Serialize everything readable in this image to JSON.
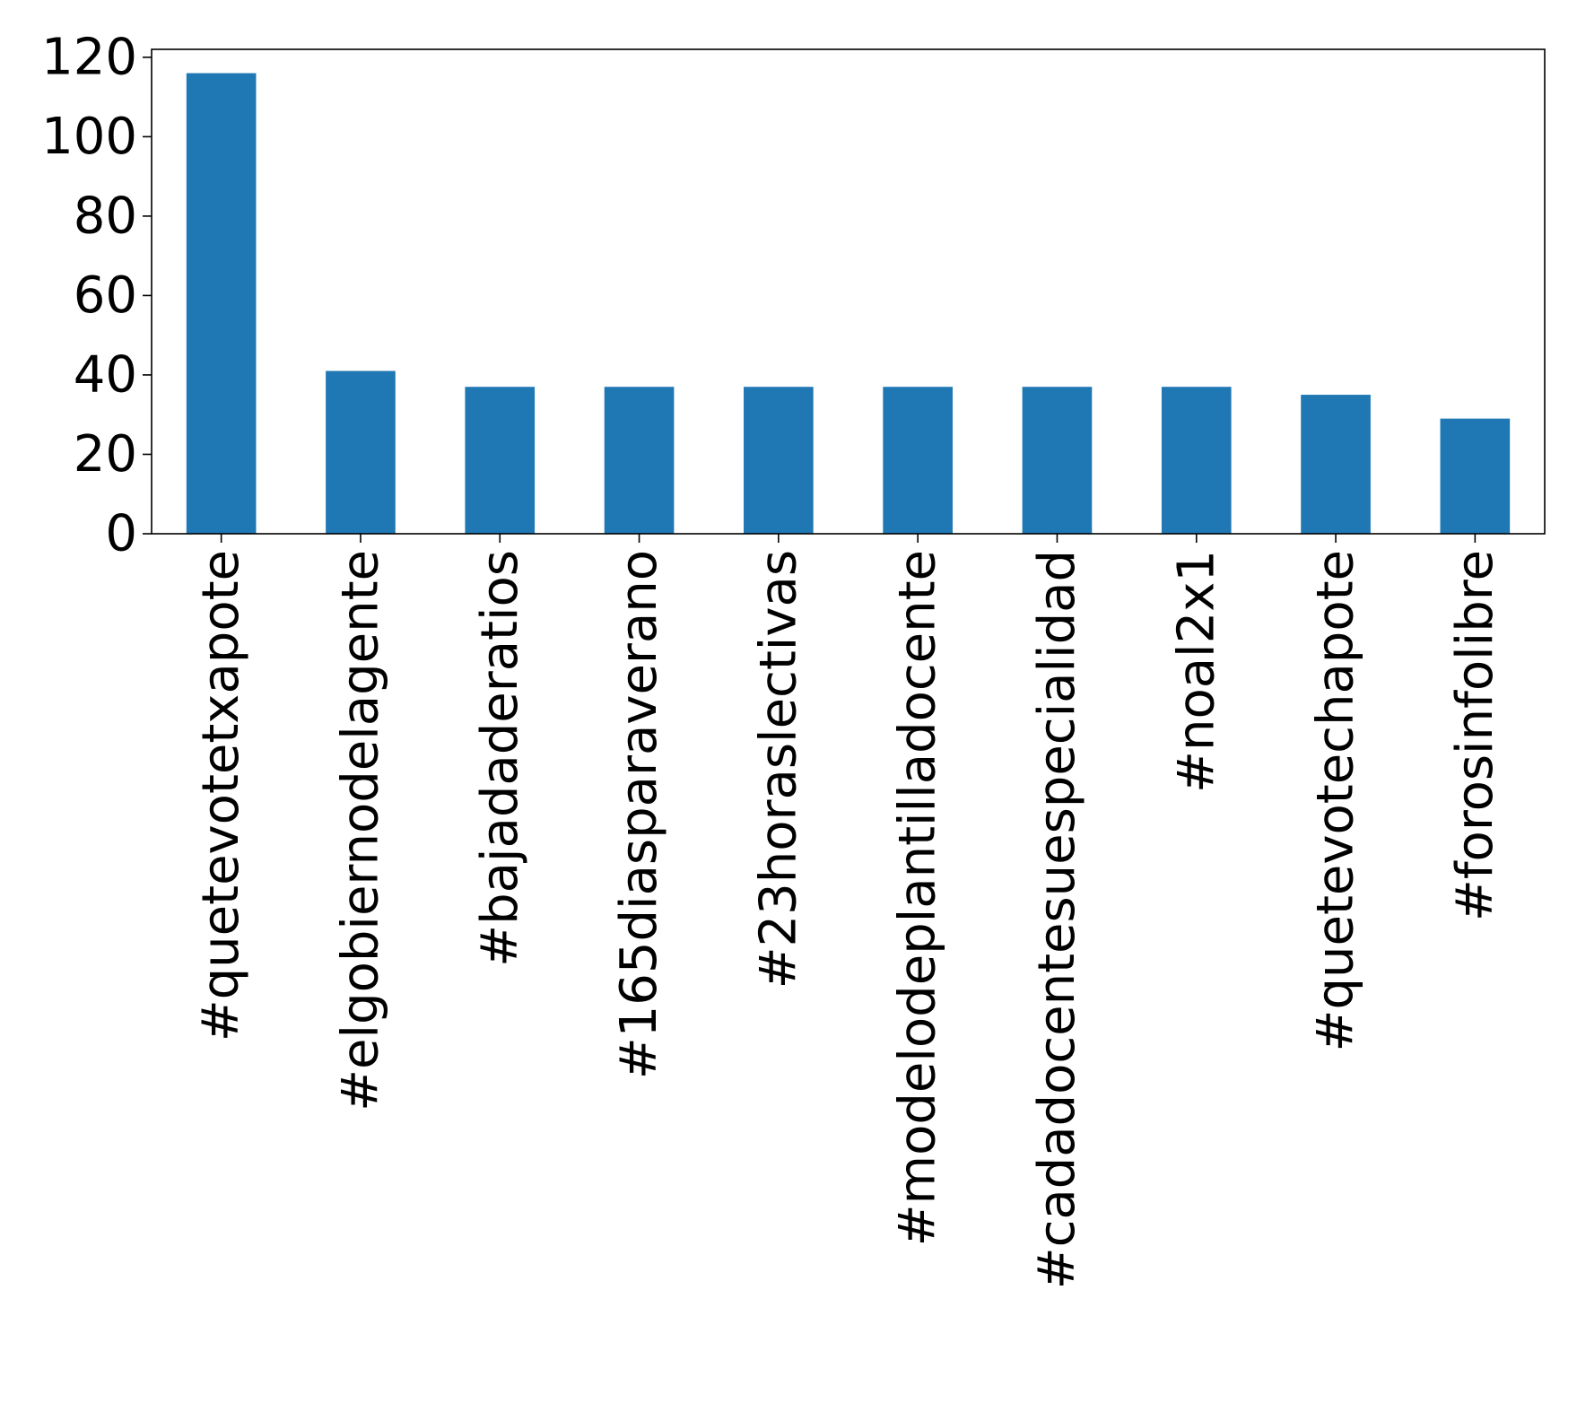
{
  "chart_data": {
    "type": "bar",
    "categories": [
      "#quetevotetxapote",
      "#elgobiernodelagente",
      "#bajadaderatios",
      "#165diasparaverano",
      "#23horaslectivas",
      "#modelodeplantilladocente",
      "#cadadocentesuespecialidad",
      "#noal2x1",
      "#quetevotechapote",
      "#forosinfolibre"
    ],
    "values": [
      116,
      41,
      37,
      37,
      37,
      37,
      37,
      37,
      35,
      29
    ],
    "ylim": [
      0,
      122
    ],
    "yticks": [
      0,
      20,
      40,
      60,
      80,
      100,
      120
    ],
    "ytick_labels": [
      "0",
      "20",
      "40",
      "60",
      "80",
      "100",
      "120"
    ],
    "title": "",
    "xlabel": "",
    "ylabel": "",
    "grid": false,
    "legend": "none",
    "colors": {
      "bar": "#1f77b4",
      "axis": "#000000",
      "background": "#ffffff"
    }
  }
}
